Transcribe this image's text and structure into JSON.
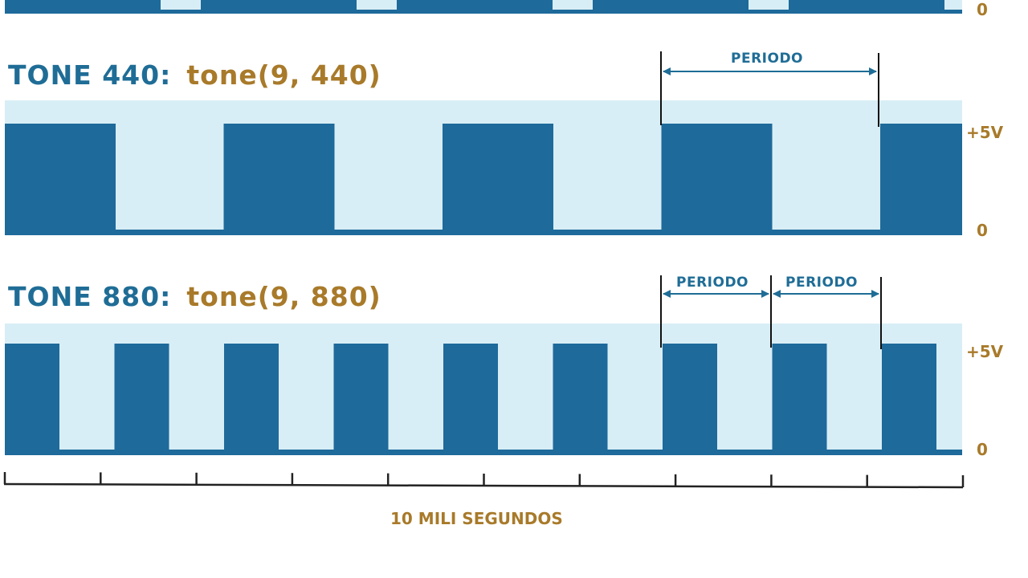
{
  "top_partial": {
    "zero_label": "0"
  },
  "tone440": {
    "title_prefix": "TONE 440:",
    "title_code": "tone(9, 440)",
    "period_label": "PERIODO",
    "high_label": "+5V",
    "low_label": "0",
    "pulses": 5
  },
  "tone880": {
    "title_prefix": "TONE 880:",
    "title_code": "tone(9, 880)",
    "period_labels": [
      "PERIODO",
      "PERIODO"
    ],
    "high_label": "+5V",
    "low_label": "0",
    "pulses": 9
  },
  "time_axis": {
    "label": "10 MILI SEGUNDOS",
    "ticks": 11
  },
  "colors": {
    "wave": "#1e6a9b",
    "background_band": "#d8eef6",
    "title_blue": "#1f6d96",
    "title_gold": "#a87a2a",
    "axis": "#222222"
  }
}
